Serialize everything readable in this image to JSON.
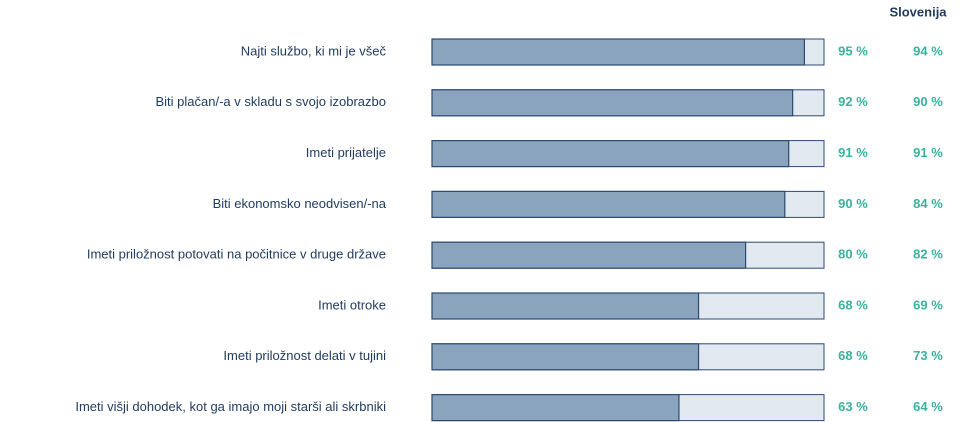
{
  "chart_data": {
    "type": "bar",
    "categories": [
      "Najti službo, ki mi je všeč",
      "Biti plačan/-a v skladu s svojo izobrazbo",
      "Imeti prijatelje",
      "Biti ekonomsko neodvisen/-na",
      "Imeti priložnost potovati na počitnice v druge države",
      "Imeti otroke",
      "Imeti priložnost delati v tujini",
      "Imeti višji dohodek, kot ga imajo moji starši ali skrbniki"
    ],
    "values": [
      95,
      92,
      91,
      90,
      80,
      68,
      68,
      63
    ],
    "value_labels": [
      "95 %",
      "92 %",
      "91 %",
      "90 %",
      "80 %",
      "68 %",
      "68 %",
      "63 %"
    ],
    "color": "#8aa4bd",
    "track_color": "#e3e9f0",
    "xlim": [
      0,
      100
    ],
    "comparison": {
      "name": "Slovenija",
      "values": [
        94,
        90,
        91,
        84,
        82,
        69,
        73,
        64
      ],
      "value_labels": [
        "94 %",
        "90 %",
        "91 %",
        "84 %",
        "82 %",
        "69 %",
        "73 %",
        "64 %"
      ]
    }
  }
}
